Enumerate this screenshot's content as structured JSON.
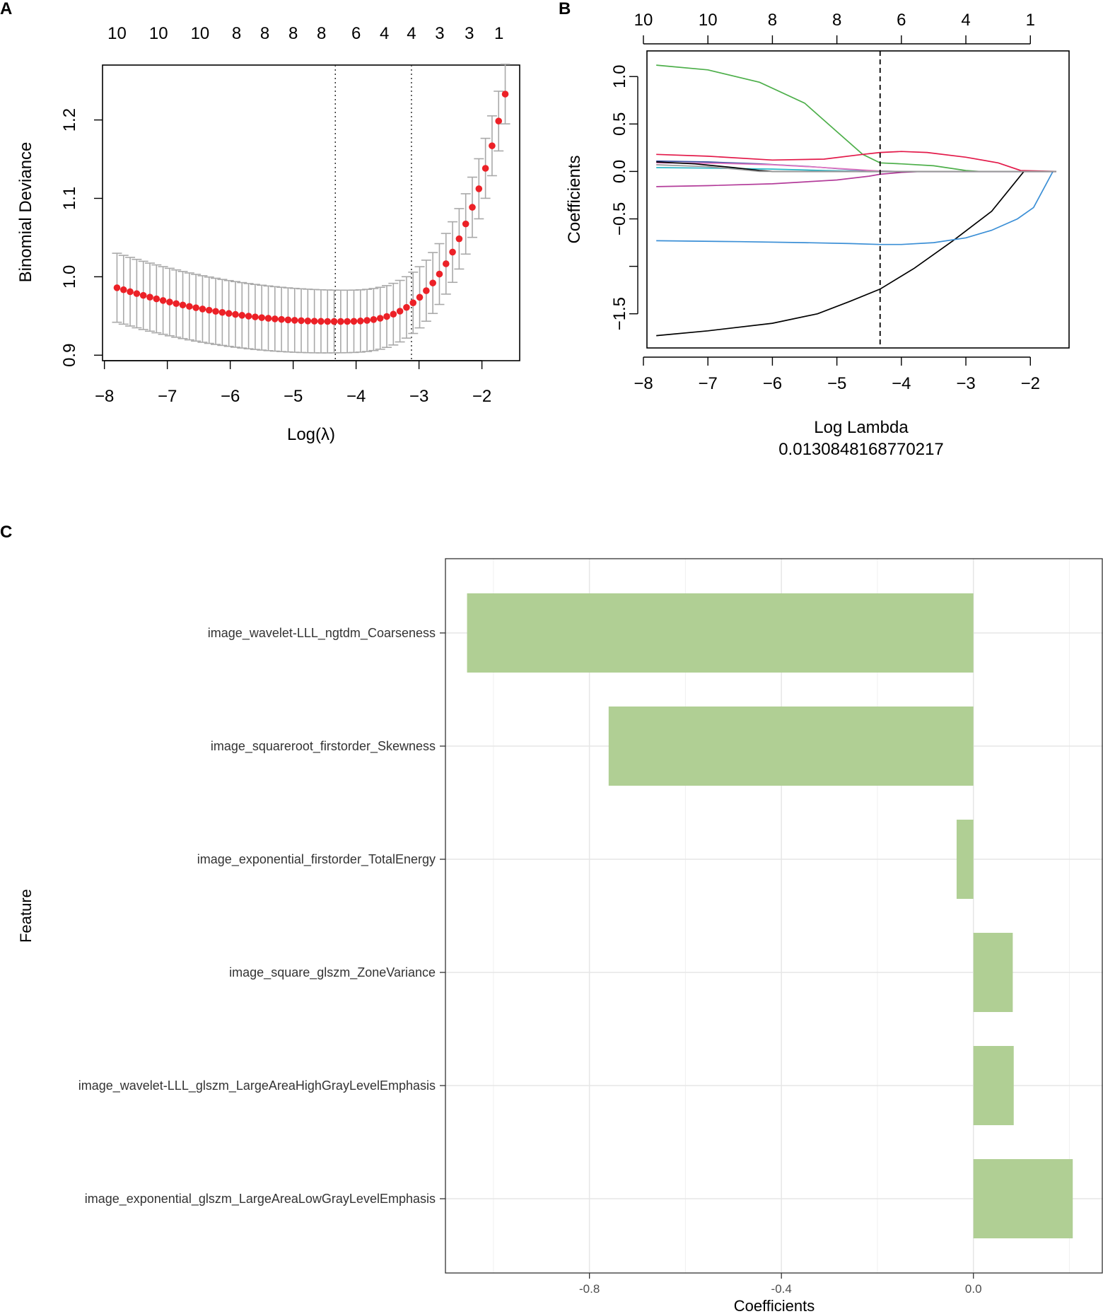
{
  "panels": {
    "a": {
      "letter": "A"
    },
    "b": {
      "letter": "B"
    },
    "c": {
      "letter": "C"
    }
  },
  "chart_data": [
    {
      "id": "A",
      "type": "scatter",
      "title": "",
      "xlabel": "Log(λ)",
      "ylabel": "Binomial Deviance",
      "xlim": [
        -8.03,
        -1.4
      ],
      "ylim": [
        0.893,
        1.27
      ],
      "x_ticks": [
        -8,
        -7,
        -6,
        -5,
        -4,
        -3,
        -2
      ],
      "x_tick_labels": [
        "−8",
        "−7",
        "−6",
        "−5",
        "−4",
        "−3",
        "−2"
      ],
      "y_ticks": [
        0.9,
        1.0,
        1.1,
        1.2
      ],
      "y_tick_labels": [
        "0.9",
        "1.0",
        "1.1",
        "1.2"
      ],
      "top_axis_positions": [
        -7.8,
        -7.14,
        -6.48,
        -5.9,
        -5.45,
        -5.0,
        -4.55,
        -4.0,
        -3.55,
        -3.12,
        -2.67,
        -2.2,
        -1.73
      ],
      "top_axis_labels": [
        "10",
        "10",
        "10",
        "8",
        "8",
        "8",
        "8",
        "6",
        "4",
        "4",
        "3",
        "3",
        "1"
      ],
      "vlines": [
        -4.33,
        -3.12
      ],
      "series": [
        {
          "name": "Binomial Deviance (mean ± SE)",
          "x_start": -7.8,
          "x_end": -1.63,
          "n_points": 60,
          "minimum": {
            "x": -4.33,
            "y": 0.943
          },
          "left_end": {
            "x": -7.8,
            "y": 0.986
          },
          "right_end": {
            "x": -1.63,
            "y": 1.233
          },
          "se_left": 0.044,
          "se_min": 0.04,
          "se_right": 0.038,
          "color": "#ec2127",
          "error_bar_color": "#a9a9a9"
        }
      ]
    },
    {
      "id": "B",
      "type": "line",
      "title": "",
      "xlabel": "Log Lambda",
      "subtitle": "0.0130848168770217",
      "ylabel": "Coefficients",
      "xlim": [
        -8.0,
        -1.4
      ],
      "ylim": [
        -1.86,
        1.27
      ],
      "x_ticks": [
        -8,
        -7,
        -6,
        -5,
        -4,
        -3,
        -2
      ],
      "x_tick_labels": [
        "−8",
        "−7",
        "−6",
        "−5",
        "−4",
        "−3",
        "−2"
      ],
      "y_ticks": [
        -1.5,
        -0.5,
        0.0,
        0.5,
        1.0
      ],
      "y_tick_labels": [
        "−1.5",
        "−0.5",
        "0.0",
        "0.5",
        "1.0"
      ],
      "extra_y_tick": -1.0,
      "top_axis_positions": [
        -8,
        -7,
        -6,
        -5,
        -4,
        -3,
        -2
      ],
      "top_axis_labels": [
        "10",
        "10",
        "8",
        "8",
        "6",
        "4",
        "1"
      ],
      "vline": -4.33,
      "series": [
        {
          "name": "green",
          "color": "#4daf4a",
          "x": [
            -7.8,
            -7.0,
            -6.2,
            -5.5,
            -5.0,
            -4.6,
            -4.33,
            -4.0,
            -3.5,
            -3.0,
            -2.8,
            -1.6
          ],
          "y": [
            1.12,
            1.07,
            0.94,
            0.72,
            0.42,
            0.18,
            0.09,
            0.08,
            0.06,
            0.01,
            0.0,
            0.0
          ]
        },
        {
          "name": "black",
          "color": "#000000",
          "x": [
            -7.8,
            -7.0,
            -6.0,
            -5.3,
            -4.8,
            -4.33,
            -3.8,
            -3.2,
            -2.6,
            -2.1,
            -1.6
          ],
          "y": [
            -1.73,
            -1.68,
            -1.6,
            -1.5,
            -1.37,
            -1.24,
            -1.02,
            -0.73,
            -0.42,
            0.0,
            0.0
          ]
        },
        {
          "name": "blue",
          "color": "#3b8fd6",
          "x": [
            -7.8,
            -6.5,
            -5.5,
            -4.8,
            -4.33,
            -4.0,
            -3.5,
            -3.0,
            -2.6,
            -2.2,
            -1.95,
            -1.65
          ],
          "y": [
            -0.73,
            -0.74,
            -0.75,
            -0.76,
            -0.77,
            -0.77,
            -0.75,
            -0.7,
            -0.62,
            -0.5,
            -0.38,
            0.0
          ]
        },
        {
          "name": "red",
          "color": "#e31a4a",
          "x": [
            -7.8,
            -7.0,
            -6.0,
            -5.2,
            -4.6,
            -4.33,
            -4.0,
            -3.6,
            -3.0,
            -2.5,
            -2.15,
            -1.6
          ],
          "y": [
            0.18,
            0.16,
            0.12,
            0.13,
            0.18,
            0.2,
            0.21,
            0.2,
            0.15,
            0.09,
            0.01,
            0.0
          ]
        },
        {
          "name": "purple",
          "color": "#b33c9a",
          "x": [
            -7.8,
            -7.0,
            -6.0,
            -5.0,
            -4.5,
            -4.33,
            -4.0,
            -3.7,
            -3.5,
            -1.6
          ],
          "y": [
            -0.16,
            -0.15,
            -0.13,
            -0.09,
            -0.05,
            -0.03,
            -0.01,
            0.0,
            0.0,
            0.0
          ]
        },
        {
          "name": "cyan",
          "color": "#29b6c6",
          "x": [
            -7.8,
            -7.0,
            -6.0,
            -5.2,
            -4.8,
            -4.5,
            -1.6
          ],
          "y": [
            0.04,
            0.035,
            0.025,
            0.01,
            0.003,
            0.0,
            0.0
          ]
        },
        {
          "name": "navy",
          "color": "#3a4aa0",
          "x": [
            -7.8,
            -7.0,
            -6.2,
            -5.4,
            -4.8,
            -4.4,
            -4.1,
            -1.6
          ],
          "y": [
            0.11,
            0.1,
            0.08,
            0.05,
            0.02,
            0.005,
            0.0,
            0.0
          ]
        },
        {
          "name": "pink",
          "color": "#e377c2",
          "x": [
            -7.8,
            -6.8,
            -6.0,
            -5.3,
            -4.7,
            -4.3,
            -4.1,
            -1.6
          ],
          "y": [
            0.09,
            0.085,
            0.07,
            0.045,
            0.02,
            0.003,
            0.0,
            0.0
          ]
        },
        {
          "name": "black2",
          "color": "#000000",
          "x": [
            -7.8,
            -7.2,
            -6.6,
            -6.2,
            -6.0,
            -1.6
          ],
          "y": [
            0.1,
            0.08,
            0.04,
            0.01,
            0.0,
            0.0
          ]
        },
        {
          "name": "gray",
          "color": "#999999",
          "x": [
            -7.8,
            -7.0,
            -6.5,
            -6.2,
            -1.6
          ],
          "y": [
            0.07,
            0.05,
            0.02,
            0.0,
            0.0
          ]
        }
      ]
    },
    {
      "id": "C",
      "type": "bar",
      "orientation": "horizontal",
      "title": "",
      "xlabel": "Coefficients",
      "ylabel": "Feature",
      "xlim": [
        -1.1,
        0.27
      ],
      "x_ticks": [
        -0.8,
        -0.4,
        0.0
      ],
      "x_tick_labels": [
        "-0.8",
        "-0.4",
        "0.0"
      ],
      "categories": [
        "image_wavelet-LLL_ngtdm_Coarseness",
        "image_squareroot_firstorder_Skewness",
        "image_exponential_firstorder_TotalEnergy",
        "image_square_glszm_ZoneVariance",
        "image_wavelet-LLL_glszm_LargeAreaHighGrayLevelEmphasis",
        "image_exponential_glszm_LargeAreaLowGrayLevelEmphasis"
      ],
      "values": [
        -1.055,
        -0.76,
        -0.035,
        0.082,
        0.084,
        0.207
      ],
      "bar_color": "#b0cf94"
    }
  ]
}
